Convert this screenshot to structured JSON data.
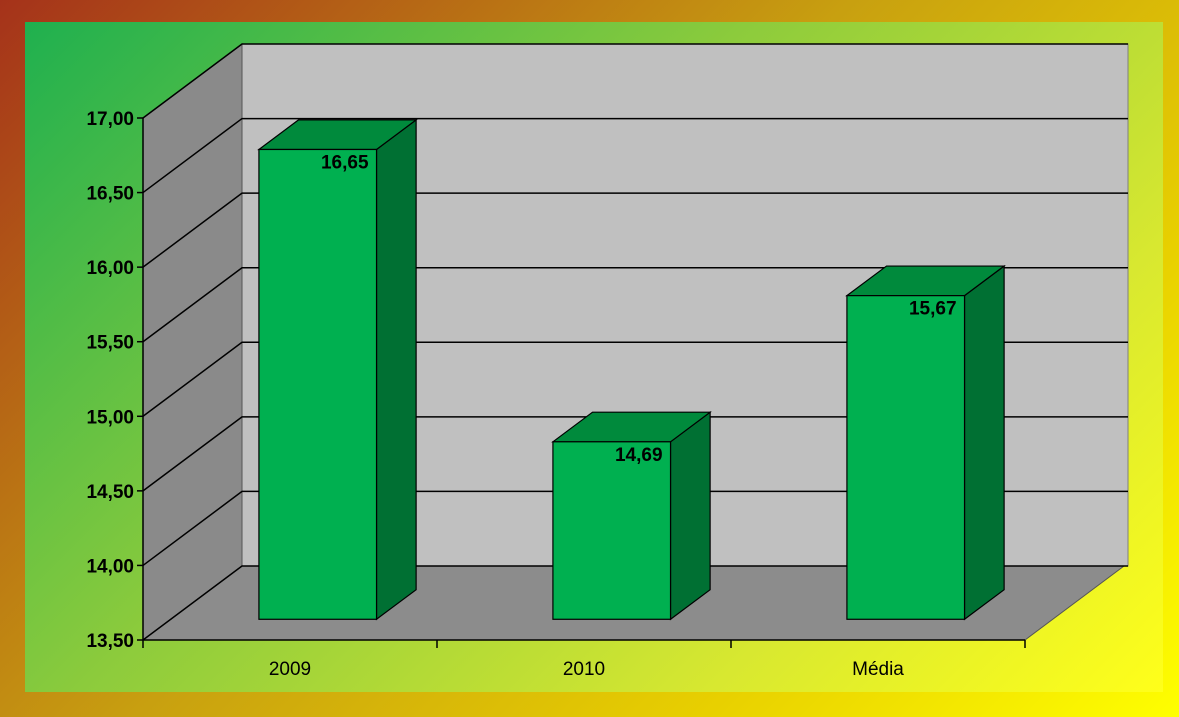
{
  "chart_data": {
    "type": "bar",
    "categories": [
      "2009",
      "2010",
      "Média"
    ],
    "values": [
      16.65,
      14.69,
      15.67
    ],
    "value_labels": [
      "16,65",
      "14,69",
      "15,67"
    ],
    "color": "#00b050",
    "ylim": [
      13.5,
      17
    ],
    "yticks": [
      {
        "value": 13.5,
        "label": "13,50"
      },
      {
        "value": 14,
        "label": "14,00"
      },
      {
        "value": 14.5,
        "label": "14,50"
      },
      {
        "value": 15,
        "label": "15,00"
      },
      {
        "value": 15.5,
        "label": "15,50"
      },
      {
        "value": 16,
        "label": "16,00"
      },
      {
        "value": 16.5,
        "label": "16,50"
      },
      {
        "value": 17,
        "label": "17,00"
      }
    ],
    "grid": true
  }
}
